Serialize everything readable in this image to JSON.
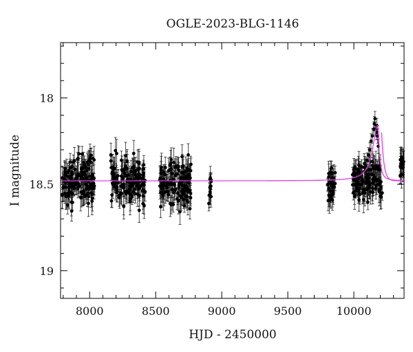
{
  "chart_data": {
    "type": "scatter",
    "title": "OGLE-2023-BLG-1146",
    "xlabel": "HJD - 2450000",
    "ylabel": "I magnitude",
    "xlim": [
      7780,
      10380
    ],
    "ylim": [
      19.16,
      17.68
    ],
    "y_inverted": true,
    "grid": false,
    "legend": "none",
    "x_ticks": [
      8000,
      8500,
      9000,
      9500,
      10000
    ],
    "x_tick_labels": [
      "8000",
      "8500",
      "9000",
      "9500",
      "10000"
    ],
    "y_ticks": [
      18,
      18.5,
      19
    ],
    "y_tick_labels": [
      "18",
      "18.5",
      "19"
    ],
    "colors": {
      "points": "#000000",
      "model": "#e040e0",
      "axes": "#000000"
    },
    "series": [
      {
        "kind": "points_with_errorbars",
        "baseline_mag": 18.48,
        "typical_error": 0.06,
        "observing_seasons": [
          {
            "x_start": 7790,
            "x_end": 8040,
            "mag_mean": 18.48,
            "mag_scatter": 0.07
          },
          {
            "x_start": 8160,
            "x_end": 8420,
            "mag_mean": 18.48,
            "mag_scatter": 0.07
          },
          {
            "x_start": 8530,
            "x_end": 8770,
            "mag_mean": 18.49,
            "mag_scatter": 0.07
          },
          {
            "x_start": 8900,
            "x_end": 8920,
            "mag_mean": 18.5,
            "mag_scatter": 0.05
          },
          {
            "x_start": 9800,
            "x_end": 9860,
            "mag_mean": 18.5,
            "mag_scatter": 0.06
          },
          {
            "x_start": 9990,
            "x_end": 10210,
            "mag_mean": 18.48,
            "mag_scatter": 0.05
          },
          {
            "x_start": 10350,
            "x_end": 10380,
            "mag_mean": 18.41,
            "mag_scatter": 0.03
          }
        ],
        "event_points": [
          [
            10040,
            18.43
          ],
          [
            10060,
            18.4
          ],
          [
            10080,
            18.38
          ],
          [
            10100,
            18.36
          ],
          [
            10110,
            18.33
          ],
          [
            10120,
            18.3
          ],
          [
            10130,
            18.25
          ],
          [
            10140,
            18.22
          ],
          [
            10150,
            18.18
          ],
          [
            10155,
            18.15
          ],
          [
            10160,
            18.12
          ],
          [
            10165,
            18.18
          ],
          [
            10170,
            18.2
          ],
          [
            10175,
            18.16
          ],
          [
            10180,
            18.22
          ],
          [
            10185,
            18.28
          ],
          [
            10195,
            18.4
          ],
          [
            10205,
            18.52
          ],
          [
            10215,
            18.55
          ]
        ]
      },
      {
        "kind": "model_curve",
        "baseline": 18.48,
        "peak_x": 10180,
        "peak_mag": 18.16,
        "t_rise": 45,
        "t_fall": 15,
        "secondary": {
          "x": 10240,
          "baseline_after": 18.48
        }
      }
    ]
  }
}
